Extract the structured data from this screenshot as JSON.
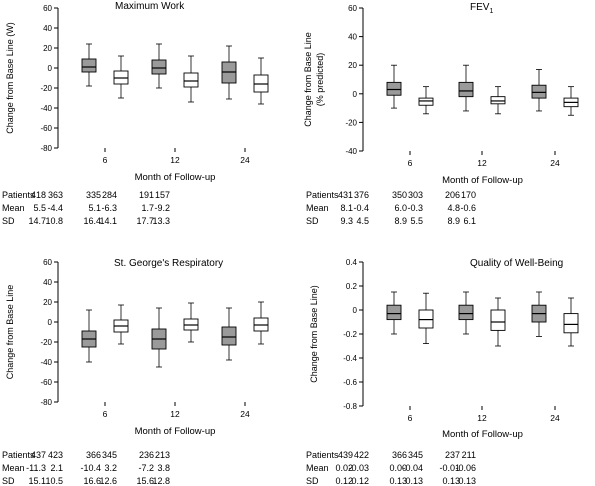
{
  "chart_data": [
    {
      "type": "box",
      "title": "Maximum Work",
      "title_sub": "",
      "xlabel": "Month of Follow-up",
      "ylabel": [
        "Change from Base Line (W)"
      ],
      "ylim": [
        -80,
        60
      ],
      "yticks": [
        60,
        40,
        20,
        0,
        -20,
        -40,
        -60,
        -80
      ],
      "ytick_labels": [
        "60",
        "40",
        "20",
        "0",
        "-20",
        "-40",
        "-60",
        "-80"
      ],
      "categories": [
        "6",
        "12",
        "24"
      ],
      "series": [
        {
          "color": "#9a9a9a",
          "boxes": [
            {
              "q1": -4,
              "median": 1,
              "q3": 9,
              "whislo": -18,
              "whishi": 24
            },
            {
              "q1": -6,
              "median": 0,
              "q3": 8,
              "whislo": -20,
              "whishi": 24
            },
            {
              "q1": -15,
              "median": -4,
              "q3": 6,
              "whislo": -31,
              "whishi": 22
            }
          ]
        },
        {
          "color": "#ffffff",
          "boxes": [
            {
              "q1": -16,
              "median": -10,
              "q3": -3,
              "whislo": -30,
              "whishi": 12
            },
            {
              "q1": -19,
              "median": -13,
              "q3": -5,
              "whislo": -34,
              "whishi": 12
            },
            {
              "q1": -24,
              "median": -16,
              "q3": -7,
              "whislo": -36,
              "whishi": 10
            }
          ]
        }
      ],
      "table": {
        "row_labels": [
          "Patients",
          "Mean",
          "SD"
        ],
        "rows": [
          [
            "418",
            "363",
            "335",
            "284",
            "191",
            "157"
          ],
          [
            "5.5",
            "-4.4",
            "5.1",
            "-6.3",
            "1.7",
            "-9.2"
          ],
          [
            "14.7",
            "10.8",
            "16.4",
            "14.1",
            "17.7",
            "13.3"
          ]
        ]
      }
    },
    {
      "type": "box",
      "title": "FEV",
      "title_sub": "1",
      "xlabel": "Month of Follow-up",
      "ylabel": [
        "Change from Base Line",
        "(% predicted)"
      ],
      "ylim": [
        -40,
        60
      ],
      "yticks": [
        60,
        40,
        20,
        0,
        -20,
        -40
      ],
      "ytick_labels": [
        "60",
        "40",
        "20",
        "0",
        "-20",
        "-40"
      ],
      "categories": [
        "6",
        "12",
        "24"
      ],
      "series": [
        {
          "color": "#9a9a9a",
          "boxes": [
            {
              "q1": -1,
              "median": 3,
              "q3": 8,
              "whislo": -10,
              "whishi": 20
            },
            {
              "q1": -2,
              "median": 2,
              "q3": 8,
              "whislo": -12,
              "whishi": 20
            },
            {
              "q1": -3,
              "median": 1,
              "q3": 6,
              "whislo": -12,
              "whishi": 17
            }
          ]
        },
        {
          "color": "#ffffff",
          "boxes": [
            {
              "q1": -8,
              "median": -5,
              "q3": -3,
              "whislo": -14,
              "whishi": 5
            },
            {
              "q1": -7,
              "median": -5,
              "q3": -2,
              "whislo": -14,
              "whishi": 5
            },
            {
              "q1": -9,
              "median": -6,
              "q3": -3,
              "whislo": -15,
              "whishi": 5
            }
          ]
        }
      ],
      "table": {
        "row_labels": [
          "Patients",
          "Mean",
          "SD"
        ],
        "rows": [
          [
            "431",
            "376",
            "350",
            "303",
            "206",
            "170"
          ],
          [
            "8.1",
            "-0.4",
            "6.0",
            "-0.3",
            "4.8",
            "-0.6"
          ],
          [
            "9.3",
            "4.5",
            "8.9",
            "5.5",
            "8.9",
            "6.1"
          ]
        ]
      }
    },
    {
      "type": "box",
      "title": "St. George's Respiratory",
      "title_sub": "",
      "xlabel": "Month of Follow-up",
      "ylabel": [
        "Change from Base Line"
      ],
      "ylim": [
        -80,
        60
      ],
      "yticks": [
        60,
        40,
        20,
        0,
        -20,
        -40,
        -60,
        -80
      ],
      "ytick_labels": [
        "60",
        "40",
        "20",
        "0",
        "-20",
        "-40",
        "-60",
        "-80"
      ],
      "categories": [
        "6",
        "12",
        "24"
      ],
      "series": [
        {
          "color": "#9a9a9a",
          "boxes": [
            {
              "q1": -25,
              "median": -17,
              "q3": -9,
              "whislo": -40,
              "whishi": 12
            },
            {
              "q1": -27,
              "median": -17,
              "q3": -7,
              "whislo": -45,
              "whishi": 14
            },
            {
              "q1": -23,
              "median": -15,
              "q3": -5,
              "whislo": -38,
              "whishi": 14
            }
          ]
        },
        {
          "color": "#ffffff",
          "boxes": [
            {
              "q1": -10,
              "median": -4,
              "q3": 2,
              "whislo": -22,
              "whishi": 17
            },
            {
              "q1": -8,
              "median": -3,
              "q3": 3,
              "whislo": -20,
              "whishi": 19
            },
            {
              "q1": -9,
              "median": -3,
              "q3": 4,
              "whislo": -22,
              "whishi": 20
            }
          ]
        }
      ],
      "table": {
        "row_labels": [
          "Patients",
          "Mean",
          "SD"
        ],
        "rows": [
          [
            "437",
            "423",
            "366",
            "345",
            "236",
            "213"
          ],
          [
            "-11.3",
            "2.1",
            "-10.4",
            "3.2",
            "-7.2",
            "3.8"
          ],
          [
            "15.1",
            "10.5",
            "16.6",
            "12.6",
            "15.6",
            "12.8"
          ]
        ]
      }
    },
    {
      "type": "box",
      "title": "Quality of Well-Being",
      "title_sub": "",
      "xlabel": "Month of Follow-up",
      "ylabel": [
        "Change from Base Line)"
      ],
      "ylim": [
        -0.8,
        0.4
      ],
      "yticks": [
        0.4,
        0.2,
        0,
        -0.2,
        -0.4,
        -0.6,
        -0.8
      ],
      "ytick_labels": [
        "0.4",
        "0.2",
        "0",
        "-0.2",
        "-0.4",
        "-0.6",
        "-0.8"
      ],
      "categories": [
        "6",
        "12",
        "24"
      ],
      "series": [
        {
          "color": "#9a9a9a",
          "boxes": [
            {
              "q1": -0.08,
              "median": -0.03,
              "q3": 0.04,
              "whislo": -0.2,
              "whishi": 0.15
            },
            {
              "q1": -0.08,
              "median": -0.03,
              "q3": 0.04,
              "whislo": -0.2,
              "whishi": 0.15
            },
            {
              "q1": -0.1,
              "median": -0.03,
              "q3": 0.04,
              "whislo": -0.22,
              "whishi": 0.15
            }
          ]
        },
        {
          "color": "#ffffff",
          "boxes": [
            {
              "q1": -0.15,
              "median": -0.08,
              "q3": 0.0,
              "whislo": -0.28,
              "whishi": 0.14
            },
            {
              "q1": -0.17,
              "median": -0.1,
              "q3": 0.0,
              "whislo": -0.3,
              "whishi": 0.1
            },
            {
              "q1": -0.19,
              "median": -0.12,
              "q3": -0.03,
              "whislo": -0.3,
              "whishi": 0.1
            }
          ]
        }
      ],
      "table": {
        "row_labels": [
          "Patients",
          "Mean",
          "SD"
        ],
        "rows": [
          [
            "439",
            "422",
            "366",
            "345",
            "237",
            "211"
          ],
          [
            "0.02",
            "-0.03",
            "0.00",
            "-0.04",
            "-0.01",
            "-0.06"
          ],
          [
            "0.12",
            "0.12",
            "0.13",
            "0.13",
            "0.13",
            "0.13"
          ]
        ]
      }
    }
  ]
}
